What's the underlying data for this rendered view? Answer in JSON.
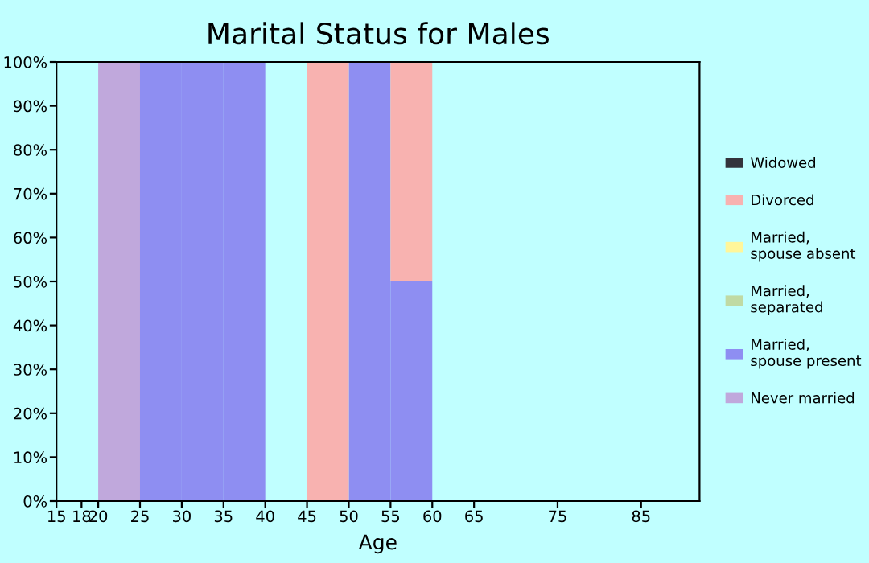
{
  "chart_data": {
    "type": "bar",
    "title": "Marital Status for Males",
    "xlabel": "Age",
    "stacked": true,
    "x": [
      16.5,
      19,
      22.5,
      27.5,
      32.5,
      37.5,
      42.5,
      47.5,
      52.5,
      57.5,
      62.5,
      70,
      80,
      88.5
    ],
    "series": [
      {
        "name": "Never married",
        "color": "#c0a8dc",
        "values": [
          0,
          0,
          100,
          0,
          0,
          0,
          0,
          0,
          0,
          0,
          0,
          0,
          0,
          0
        ]
      },
      {
        "name": "Married,\nspouse present",
        "color": "#8e8ef2",
        "values": [
          0,
          0,
          0,
          100,
          100,
          100,
          0,
          0,
          100,
          50,
          0,
          0,
          0,
          0
        ]
      },
      {
        "name": "Married,\nseparated",
        "color": "#c0daa4",
        "values": [
          0,
          0,
          0,
          0,
          0,
          0,
          0,
          0,
          0,
          0,
          0,
          0,
          0,
          0
        ]
      },
      {
        "name": "Married,\nspouse absent",
        "color": "#fff69a",
        "values": [
          0,
          0,
          0,
          0,
          0,
          0,
          0,
          0,
          0,
          0,
          0,
          0,
          0,
          0
        ]
      },
      {
        "name": "Divorced",
        "color": "#f8b2b0",
        "values": [
          0,
          0,
          0,
          0,
          0,
          0,
          0,
          100,
          0,
          50,
          0,
          0,
          0,
          0
        ]
      },
      {
        "name": "Widowed",
        "color": "#33333b",
        "values": [
          0,
          0,
          0,
          0,
          0,
          0,
          0,
          0,
          0,
          0,
          0,
          0,
          0,
          0
        ]
      }
    ],
    "xlim": [
      15,
      92
    ],
    "ylim": [
      0,
      100
    ],
    "xticks": [
      15,
      18,
      20,
      25,
      30,
      35,
      40,
      45,
      50,
      55,
      60,
      65,
      75,
      85
    ],
    "yticks": [
      {
        "value": 0,
        "label": "0%"
      },
      {
        "value": 10,
        "label": "10%"
      },
      {
        "value": 20,
        "label": "20%"
      },
      {
        "value": 30,
        "label": "30%"
      },
      {
        "value": 40,
        "label": "40%"
      },
      {
        "value": 50,
        "label": "50%"
      },
      {
        "value": 60,
        "label": "60%"
      },
      {
        "value": 70,
        "label": "70%"
      },
      {
        "value": 80,
        "label": "80%"
      },
      {
        "value": 90,
        "label": "90%"
      },
      {
        "value": 100,
        "label": "100%"
      }
    ],
    "grid": false,
    "legend": "right"
  }
}
